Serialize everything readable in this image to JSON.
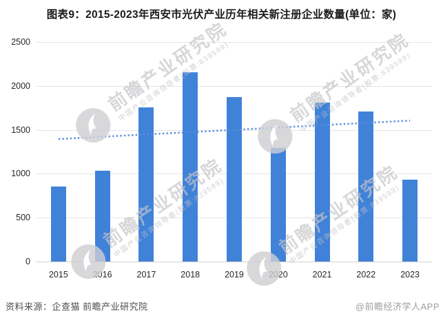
{
  "title": "图表9：2015-2023年西安市光伏产业历年相关新注册企业数量(单位：家)",
  "chart_data": {
    "type": "bar",
    "title": "2015-2023年西安市光伏产业历年相关新注册企业数量",
    "unit": "家",
    "categories": [
      "2015",
      "2016",
      "2017",
      "2018",
      "2019",
      "2020",
      "2021",
      "2022",
      "2023"
    ],
    "values": [
      855,
      1035,
      1755,
      2155,
      1875,
      1290,
      1810,
      1710,
      935
    ],
    "series_name": "新注册企业数量",
    "trendline": {
      "type": "linear",
      "style": "dotted",
      "start_value": 1395,
      "end_value": 1605
    },
    "ylim": [
      0,
      2500
    ],
    "yticks": [
      0,
      500,
      1000,
      1500,
      2000,
      2500
    ],
    "grid": true,
    "legend_position": "none",
    "bar_color": "#4182d9",
    "trend_color": "#5a8cdf"
  },
  "footer": {
    "source": "资料来源：企查猫 前瞻产业研究院",
    "credit": "@前瞻经济学人APP"
  },
  "watermark": {
    "logo": "qianzhan-logo",
    "text_large": "前瞻产业研究院",
    "text_small": "中国产业咨询领导者(股票:839599)"
  }
}
